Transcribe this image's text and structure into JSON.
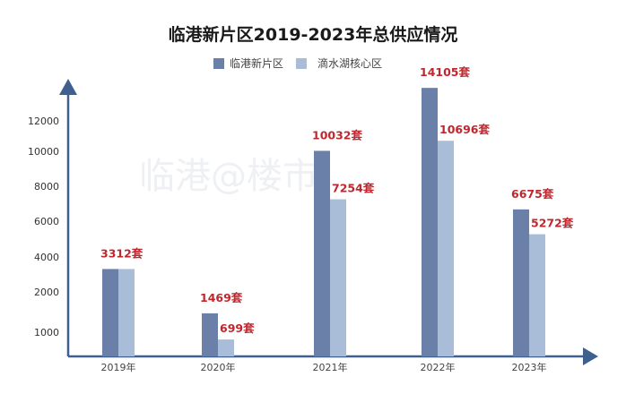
{
  "chart_data": {
    "type": "bar",
    "title": "临港新片区2019-2023年总供应情况",
    "categories": [
      "2019年",
      "2020年",
      "2021年",
      "2022年",
      "2023年"
    ],
    "series": [
      {
        "name": "临港新片区",
        "color": "#6a80a8",
        "values": [
          3312,
          1469,
          10032,
          14105,
          6675
        ],
        "labels": [
          "3312套",
          "1469套",
          "10032套",
          "14105套",
          "6675套"
        ]
      },
      {
        "name": "滴水湖核心区",
        "color": "#a9bdd9",
        "values": [
          3312,
          699,
          7254,
          10696,
          5272
        ],
        "labels": [
          null,
          "699套",
          "7254套",
          "10696套",
          "5272套"
        ]
      }
    ],
    "yticks": [
      "1000",
      "2000",
      "4000",
      "6000",
      "8000",
      "10000",
      "12000"
    ],
    "legend": "top",
    "label_color": "#c0262d",
    "axis_color": "#3f5f8f",
    "watermark": "临港@楼市"
  }
}
